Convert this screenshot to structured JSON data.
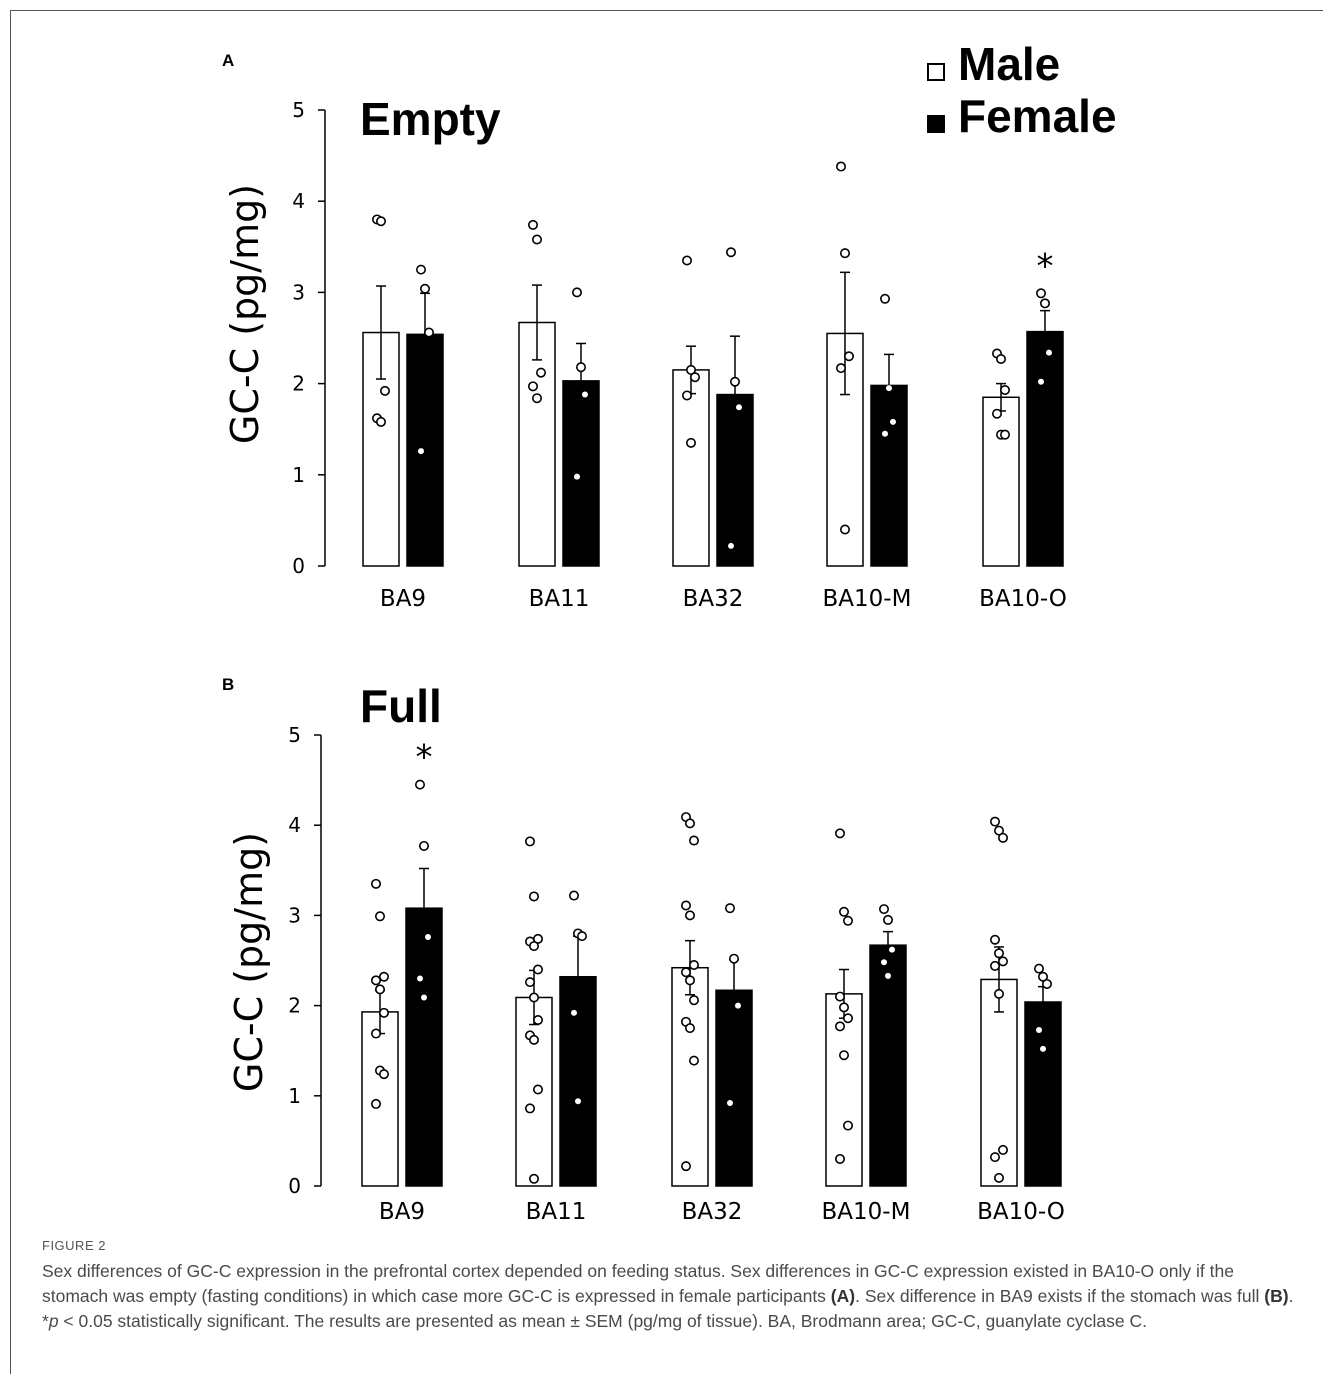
{
  "chart_data": [
    {
      "type": "bar",
      "panel": "A",
      "title": "Empty",
      "ylabel": "GC-C (pg/mg)",
      "ylim": [
        0,
        5
      ],
      "yticks": [
        "0",
        "1",
        "2",
        "3",
        "4",
        "5"
      ],
      "categories": [
        "BA9",
        "BA11",
        "BA32",
        "BA10-M",
        "BA10-O"
      ],
      "series": [
        {
          "name": "Male",
          "values": [
            2.56,
            2.67,
            2.15,
            2.55,
            1.85
          ],
          "sem": [
            0.51,
            0.41,
            0.26,
            0.67,
            0.15
          ],
          "points": [
            [
              3.8,
              3.78,
              1.92,
              1.62,
              1.58
            ],
            [
              3.74,
              3.58,
              2.12,
              1.97,
              1.84
            ],
            [
              3.35,
              2.15,
              2.07,
              1.87,
              1.35
            ],
            [
              4.38,
              3.43,
              2.3,
              2.17,
              0.4
            ],
            [
              2.33,
              2.27,
              1.93,
              1.67,
              1.44,
              1.44
            ]
          ]
        },
        {
          "name": "Female",
          "values": [
            2.54,
            2.03,
            1.88,
            1.98,
            2.57
          ],
          "sem": [
            0.45,
            0.41,
            0.64,
            0.34,
            0.23
          ],
          "points": [
            [
              3.25,
              3.04,
              2.56,
              1.26
            ],
            [
              3.0,
              2.18,
              1.88,
              0.98
            ],
            [
              3.44,
              2.02,
              1.74,
              0.22
            ],
            [
              2.93,
              1.95,
              1.58,
              1.45
            ],
            [
              2.99,
              2.88,
              2.34,
              2.02
            ]
          ]
        }
      ],
      "annotations": [
        {
          "text": "*",
          "category": "BA10-O",
          "series": "Female"
        }
      ],
      "legend": "top-right"
    },
    {
      "type": "bar",
      "panel": "B",
      "title": "Full",
      "ylabel": "GC-C (pg/mg)",
      "ylim": [
        0,
        5
      ],
      "yticks": [
        "0",
        "1",
        "2",
        "3",
        "4",
        "5"
      ],
      "categories": [
        "BA9",
        "BA11",
        "BA32",
        "BA10-M",
        "BA10-O"
      ],
      "series": [
        {
          "name": "Male",
          "values": [
            1.93,
            2.09,
            2.42,
            2.13,
            2.29
          ],
          "sem": [
            0.24,
            0.3,
            0.3,
            0.27,
            0.36
          ],
          "points": [
            [
              3.35,
              2.99,
              2.32,
              2.28,
              2.18,
              1.92,
              1.69,
              1.28,
              1.24,
              0.91
            ],
            [
              3.82,
              3.21,
              2.74,
              2.71,
              2.66,
              2.4,
              2.26,
              2.09,
              1.84,
              1.67,
              1.62,
              1.07,
              0.86,
              0.08
            ],
            [
              4.09,
              4.02,
              3.83,
              3.11,
              3.0,
              2.45,
              2.37,
              2.28,
              2.06,
              1.82,
              1.75,
              1.39,
              0.22
            ],
            [
              3.91,
              3.04,
              2.94,
              2.1,
              1.98,
              1.86,
              1.77,
              1.45,
              0.67,
              0.3
            ],
            [
              4.04,
              3.94,
              3.86,
              2.73,
              2.58,
              2.49,
              2.44,
              2.13,
              0.4,
              0.32,
              0.09
            ]
          ]
        },
        {
          "name": "Female",
          "values": [
            3.08,
            2.32,
            2.17,
            2.67,
            2.04
          ],
          "sem": [
            0.44,
            0.45,
            0.34,
            0.15,
            0.17
          ],
          "points": [
            [
              4.45,
              3.77,
              2.76,
              2.3,
              2.09
            ],
            [
              3.22,
              2.8,
              2.77,
              1.92,
              0.94
            ],
            [
              3.08,
              2.52,
              2.0,
              0.92
            ],
            [
              3.07,
              2.95,
              2.62,
              2.48,
              2.33
            ],
            [
              2.41,
              2.32,
              2.24,
              1.73,
              1.52
            ]
          ]
        }
      ],
      "annotations": [
        {
          "text": "*",
          "category": "BA9",
          "series": "Female"
        }
      ]
    }
  ],
  "panels": [
    {
      "letter": "A"
    },
    {
      "letter": "B"
    }
  ],
  "legend": {
    "male_label": "Male",
    "female_label": "Female",
    "male_color": "#ffffff",
    "female_color": "#000000"
  },
  "caption": {
    "figure_label": "FIGURE 2",
    "text_1": "Sex differences of GC-C expression in the prefrontal cortex depended on feeding status. Sex differences in GC-C expression existed in BA10-O only if the stomach was empty (fasting conditions) in which case more GC-C is expressed in female participants ",
    "ref_a": "(A)",
    "text_2": ". Sex difference in BA9 exists if the stomach was full ",
    "ref_b": "(B)",
    "text_3": ". *",
    "p_symbol": "p",
    "text_4": " < 0.05 statistically significant. The results are presented as mean ± SEM (pg/mg of tissue). BA, Brodmann area; GC-C, guanylate cyclase C."
  }
}
